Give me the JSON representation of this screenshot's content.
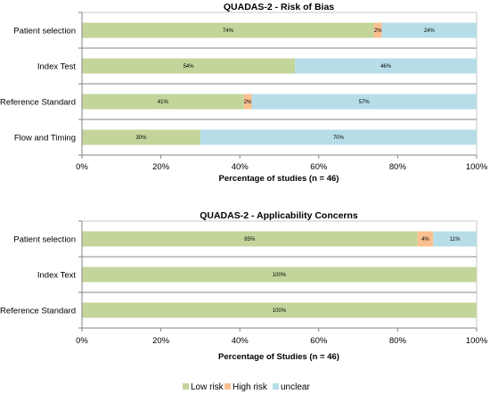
{
  "chart_data": [
    {
      "type": "bar",
      "orientation": "horizontal",
      "stacked": true,
      "title": "QUADAS-2 - Risk of Bias",
      "xlabel": "Percentage of studies (n = 46)",
      "categories": [
        "Patient selection",
        "Index Test",
        "Reference Standard",
        "Flow and Timing"
      ],
      "series": [
        {
          "name": "Low risk",
          "values": [
            74,
            54,
            41,
            30
          ],
          "labels": [
            "74%",
            "54%",
            "41%",
            "30%"
          ]
        },
        {
          "name": "High risk",
          "values": [
            2,
            0,
            2,
            0
          ],
          "labels": [
            "2%",
            "",
            "2%",
            ""
          ]
        },
        {
          "name": "unclear",
          "values": [
            24,
            46,
            57,
            70
          ],
          "labels": [
            "24%",
            "46%",
            "57%",
            "70%"
          ]
        }
      ],
      "xlim": [
        0,
        100
      ],
      "xticks": [
        "0%",
        "20%",
        "40%",
        "60%",
        "80%",
        "100%"
      ],
      "grid": "none"
    },
    {
      "type": "bar",
      "orientation": "horizontal",
      "stacked": true,
      "title": "QUADAS-2 - Applicability Concerns",
      "xlabel": "Percentage of Studies (n = 46)",
      "categories": [
        "Patient selection",
        "Index Text",
        "Reference Standard"
      ],
      "series": [
        {
          "name": "Low risk",
          "values": [
            85,
            100,
            100
          ],
          "labels": [
            "85%",
            "100%",
            "100%"
          ]
        },
        {
          "name": "High risk",
          "values": [
            4,
            0,
            0
          ],
          "labels": [
            "4%",
            "",
            ""
          ]
        },
        {
          "name": "unclear",
          "values": [
            11,
            0,
            0
          ],
          "labels": [
            "11%",
            "",
            ""
          ]
        }
      ],
      "xlim": [
        0,
        100
      ],
      "xticks": [
        "0%",
        "20%",
        "40%",
        "60%",
        "80%",
        "100%"
      ],
      "grid": "none"
    }
  ],
  "legend": {
    "placement": "bottom",
    "items": [
      {
        "label": "Low risk",
        "color": "#c3d59a"
      },
      {
        "label": "High risk",
        "color": "#fac090"
      },
      {
        "label": "unclear",
        "color": "#b7dee8"
      }
    ]
  },
  "colors": {
    "low": "#c3d59a",
    "high": "#fac090",
    "unclear": "#b7dee8",
    "axis": "#868686"
  }
}
